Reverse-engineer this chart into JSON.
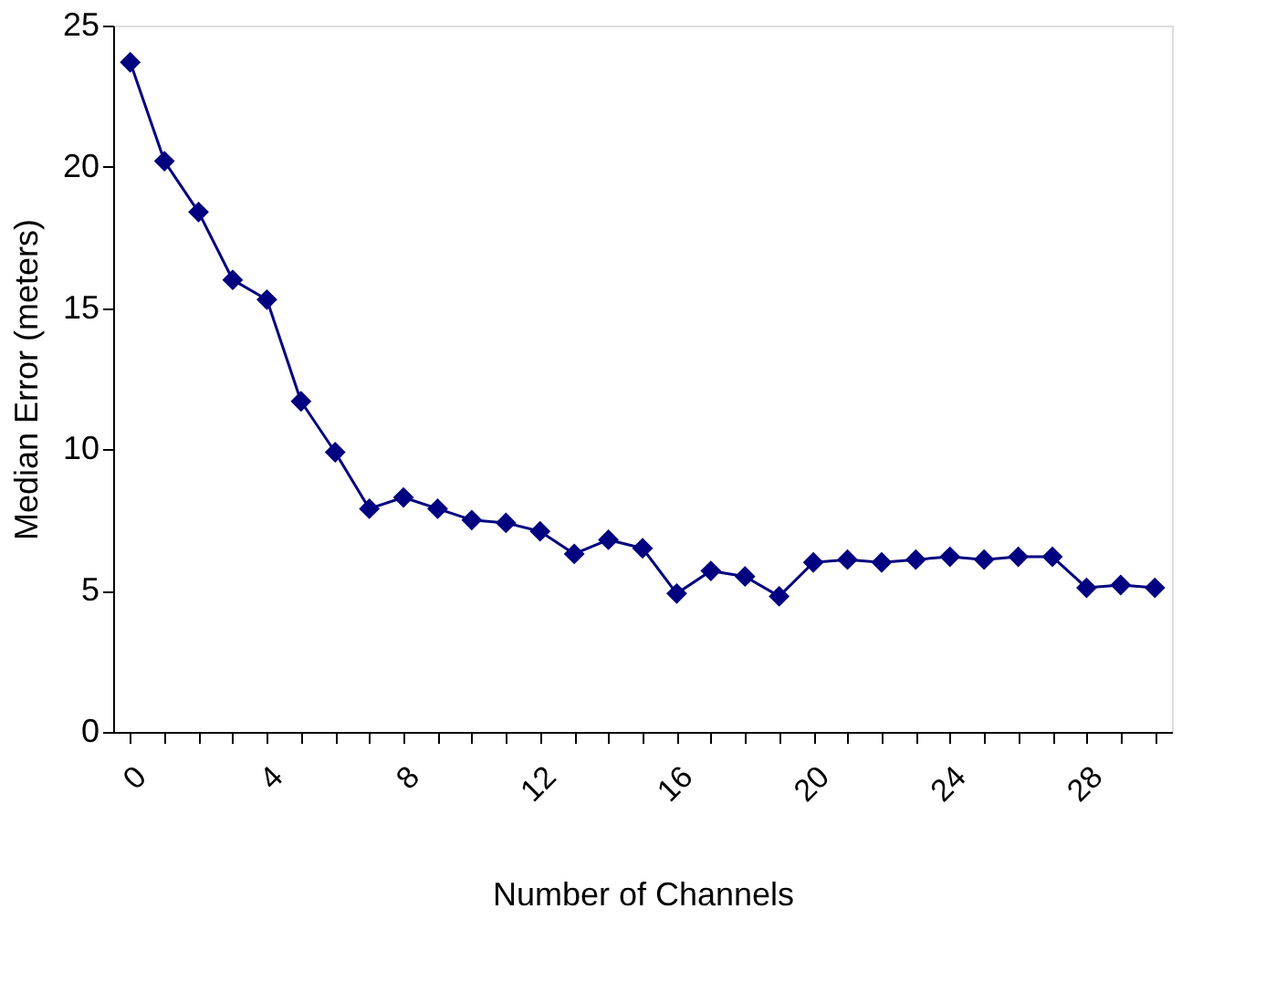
{
  "chart_data": {
    "type": "line",
    "xlabel": "Number of Channels",
    "ylabel": "Median Error (meters)",
    "categories": [
      "0",
      null,
      null,
      null,
      "4",
      null,
      null,
      null,
      "8",
      null,
      null,
      null,
      "12",
      null,
      null,
      null,
      "16",
      null,
      null,
      null,
      "20",
      null,
      null,
      null,
      "24",
      null,
      null,
      null,
      "28",
      null,
      null
    ],
    "series": [
      {
        "color": "#000080",
        "values": [
          23.7,
          20.2,
          18.4,
          16.0,
          15.3,
          11.7,
          9.9,
          7.9,
          8.3,
          7.9,
          7.5,
          7.4,
          7.1,
          6.3,
          6.8,
          6.5,
          4.9,
          5.7,
          5.5,
          4.8,
          6.0,
          6.1,
          6.0,
          6.1,
          6.2,
          6.1,
          6.2,
          6.2,
          5.1,
          5.2,
          5.1
        ]
      }
    ],
    "ylim": [
      0,
      25
    ],
    "yticks": [
      0,
      5,
      10,
      15,
      20,
      25
    ],
    "grid": false,
    "marker": "diamond",
    "line_style": "solid"
  }
}
